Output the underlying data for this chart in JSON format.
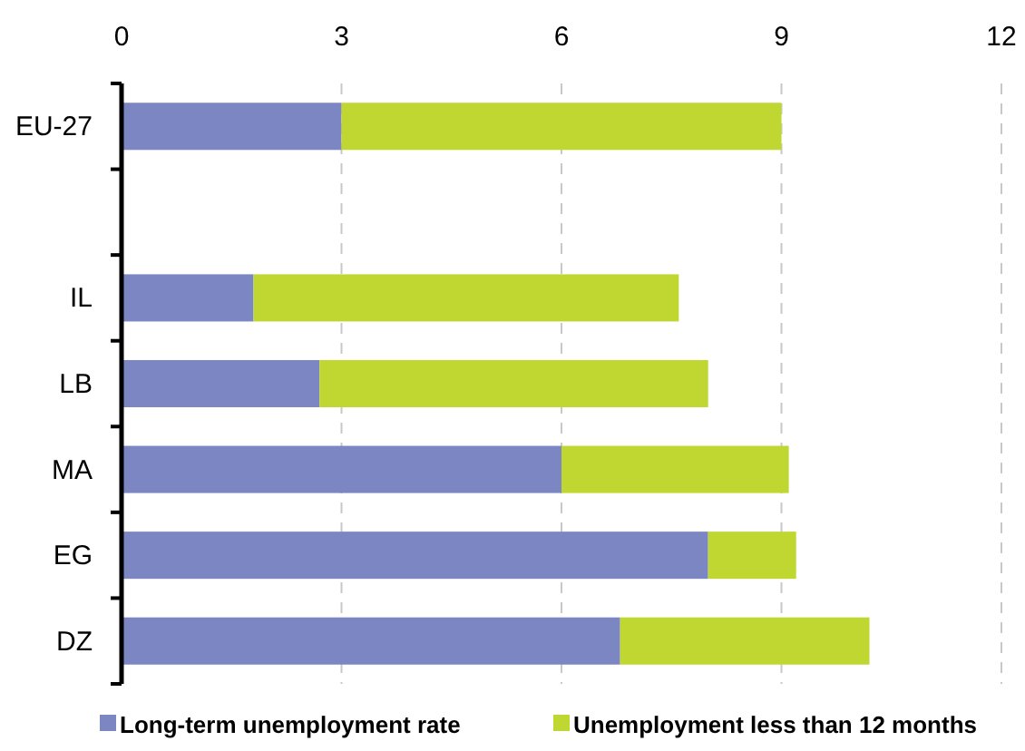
{
  "chart_data": {
    "type": "bar",
    "orientation": "horizontal",
    "stacked": true,
    "categories": [
      "EU-27",
      null,
      "IL",
      "LB",
      "MA",
      "EG",
      "DZ"
    ],
    "series": [
      {
        "name": "Long-term unemployment rate",
        "color": "#7b86c2",
        "values": [
          3.0,
          null,
          1.8,
          2.7,
          6.0,
          8.0,
          6.8
        ]
      },
      {
        "name": "Unemployment less than 12 months",
        "color": "#bfd730",
        "values": [
          6.0,
          null,
          5.8,
          5.3,
          3.1,
          1.2,
          3.4
        ]
      }
    ],
    "xlim": [
      0,
      12
    ],
    "xticks": [
      0,
      3,
      6,
      9,
      12
    ],
    "grid": "x",
    "legend": "bottom"
  }
}
